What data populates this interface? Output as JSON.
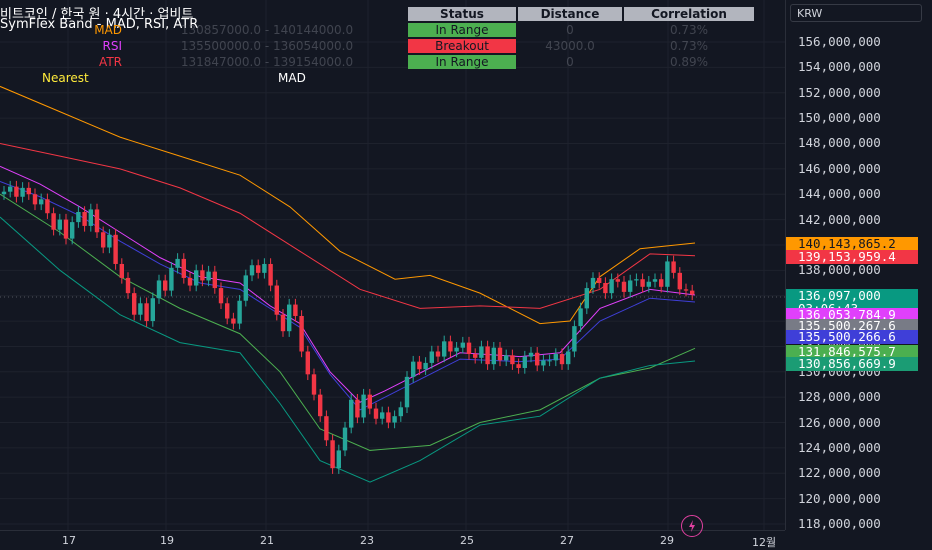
{
  "legend": {
    "symbol_line": "비트코인 / 한국 원 · 4시간 · 업비트",
    "indicator_line": "SymFlex Band - MAD, RSI, ATR"
  },
  "table": {
    "headers": [
      "Status",
      "Distance",
      "Correlation"
    ],
    "rows": [
      {
        "label": "MAD",
        "label_color": "#ff9800",
        "range": "130857000.0 - 140144000.0",
        "status": "In Range",
        "status_kind": "green",
        "distance": "0",
        "correlation": "0.73%"
      },
      {
        "label": "RSI",
        "label_color": "#e040fb",
        "range": "135500000.0 - 136054000.0",
        "status": "Breakout",
        "status_kind": "red",
        "distance": "43000.0",
        "correlation": "0.73%"
      },
      {
        "label": "ATR",
        "label_color": "#f23645",
        "range": "131847000.0 - 139154000.0",
        "status": "In Range",
        "status_kind": "green",
        "distance": "0",
        "correlation": "0.89%"
      }
    ],
    "nearest_label": "Nearest",
    "nearest_value": "MAD"
  },
  "price_scale": {
    "currency": "KRW",
    "ticks": [
      "156,000,000",
      "154,000,000",
      "152,000,000",
      "150,000,000",
      "148,000,000",
      "146,000,000",
      "144,000,000",
      "142,000,000",
      "140,000,000",
      "138,000,000",
      "136,000,000",
      "134,000,000",
      "132,000,000",
      "130,000,000",
      "128,000,000",
      "126,000,000",
      "124,000,000",
      "122,000,000",
      "120,000,000",
      "118,000,000"
    ],
    "labels": [
      {
        "text": "140,143,865.2",
        "bg": "#ff9800",
        "fg": "#131722"
      },
      {
        "text": "139,153,959.4",
        "bg": "#f23645",
        "fg": "#ffffff"
      },
      {
        "text": "136,097,000",
        "text2": "03:06:43",
        "bg": "#089981",
        "fg": "#ffffff"
      },
      {
        "text": "136,053,784.9",
        "bg": "#e040fb",
        "fg": "#ffffff"
      },
      {
        "text": "135,500,267.6",
        "bg": "#787b86",
        "fg": "#ffffff"
      },
      {
        "text": "135,500,266.6",
        "bg": "#3f3fd8",
        "fg": "#ffffff"
      },
      {
        "text": "131,846,575.7",
        "bg": "#4caf50",
        "fg": "#ffffff"
      },
      {
        "text": "130,856,669.9",
        "bg": "#1b9c74",
        "fg": "#ffffff"
      }
    ]
  },
  "time_scale": {
    "ticks": [
      "17",
      "19",
      "21",
      "23",
      "25",
      "27",
      "29",
      "12월"
    ]
  },
  "colors": {
    "up": "#26a69a",
    "down": "#f23645",
    "mad_upper": "#ff9800",
    "mad_lower": "#089981",
    "atr_upper": "#f23645",
    "atr_lower": "#4caf50",
    "rsi_upper": "#e040fb",
    "rsi_lower": "#3f3fd8"
  },
  "icons": {
    "bolt": "lightning-bolt-icon"
  }
}
